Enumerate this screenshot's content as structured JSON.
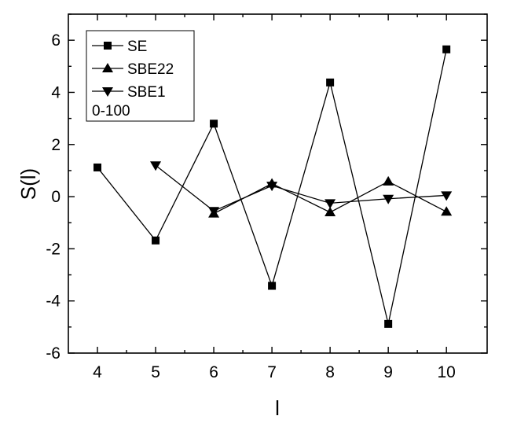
{
  "chart_data": {
    "type": "line",
    "xlabel": "l",
    "ylabel": "S(l)",
    "xlim": [
      3.5,
      10.7
    ],
    "ylim": [
      -6,
      7
    ],
    "xticks": [
      4,
      5,
      6,
      7,
      8,
      9,
      10
    ],
    "yticks": [
      -6,
      -4,
      -2,
      0,
      2,
      4,
      6
    ],
    "grid": false,
    "legend_position": "top-left",
    "annotation": "0-100",
    "series": [
      {
        "name": "SE",
        "marker": "square",
        "x": [
          4,
          5,
          6,
          7,
          8,
          9,
          10
        ],
        "values": [
          1.12,
          -1.68,
          2.8,
          -3.42,
          4.38,
          -4.88,
          5.65
        ]
      },
      {
        "name": "SBE22",
        "marker": "triangle-up",
        "x": [
          6,
          7,
          8,
          9,
          10
        ],
        "values": [
          -0.65,
          0.5,
          -0.6,
          0.58,
          -0.58
        ]
      },
      {
        "name": "SBE1",
        "marker": "triangle-down",
        "x": [
          5,
          6,
          7,
          8,
          9,
          10
        ],
        "values": [
          1.2,
          -0.55,
          0.42,
          -0.25,
          -0.08,
          0.05
        ]
      }
    ]
  }
}
